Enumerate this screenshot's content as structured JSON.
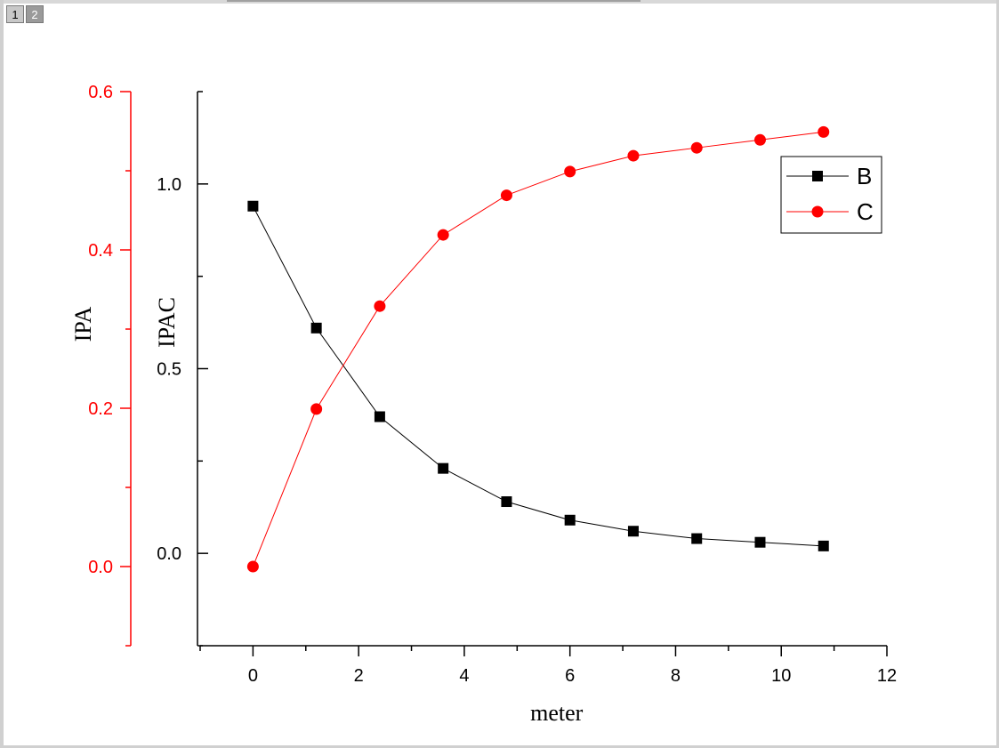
{
  "page_tabs": [
    "1",
    "2"
  ],
  "chart_data": {
    "type": "line",
    "x_axis": {
      "label": "meter",
      "range": [
        -1,
        12
      ],
      "ticks": [
        0,
        2,
        4,
        6,
        8,
        10,
        12
      ],
      "tick_labels": [
        "0",
        "2",
        "4",
        "6",
        "8",
        "10",
        "12"
      ]
    },
    "y_axis_left": {
      "label": "IPA",
      "color": "#ff0000",
      "range": [
        -0.1,
        0.6
      ],
      "ticks": [
        0.0,
        0.2,
        0.4,
        0.6
      ],
      "tick_labels": [
        "0.0",
        "0.2",
        "0.4",
        "0.6"
      ]
    },
    "y_axis_right": {
      "label": "IPAC",
      "color": "#000000",
      "range": [
        -0.25,
        1.25
      ],
      "ticks": [
        0.0,
        0.5,
        1.0
      ],
      "tick_labels": [
        "0.0",
        "0.5",
        "1.0"
      ]
    },
    "series": [
      {
        "name": "B",
        "color": "#000000",
        "marker": "square",
        "axis": "IPAC",
        "x": [
          0,
          1.2,
          2.4,
          3.6,
          4.8,
          6.0,
          7.2,
          8.4,
          9.6,
          10.8
        ],
        "y": [
          0.94,
          0.61,
          0.37,
          0.23,
          0.14,
          0.09,
          0.06,
          0.04,
          0.03,
          0.02
        ]
      },
      {
        "name": "C",
        "color": "#ff0000",
        "marker": "circle",
        "axis": "IPA",
        "x": [
          0,
          1.2,
          2.4,
          3.6,
          4.8,
          6.0,
          7.2,
          8.4,
          9.6,
          10.8
        ],
        "y": [
          0.0,
          0.199,
          0.329,
          0.419,
          0.469,
          0.499,
          0.519,
          0.529,
          0.539,
          0.549
        ]
      }
    ],
    "legend": {
      "placement": "top-right",
      "entries": [
        "B",
        "C"
      ]
    },
    "grid": false
  }
}
